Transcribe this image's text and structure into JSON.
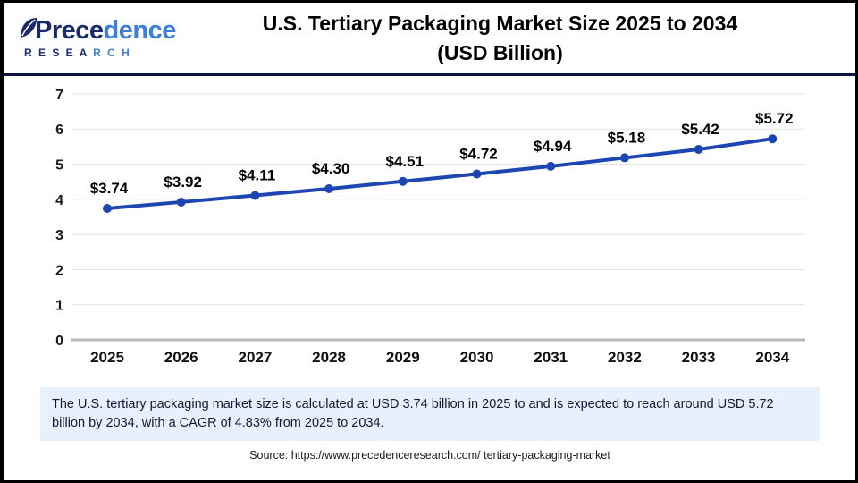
{
  "header": {
    "logo": {
      "brand_dark": "Prece",
      "brand_light": "dence",
      "sub_dark": "R E S E A ",
      "sub_light": "R C H"
    },
    "title_line1": "U.S. Tertiary Packaging Market Size 2025 to 2034",
    "title_line2": "(USD Billion)"
  },
  "chart_data": {
    "type": "line",
    "title": "U.S. Tertiary Packaging Market Size 2025 to 2034 (USD Billion)",
    "categories": [
      "2025",
      "2026",
      "2027",
      "2028",
      "2029",
      "2030",
      "2031",
      "2032",
      "2033",
      "2034"
    ],
    "values": [
      3.74,
      3.92,
      4.11,
      4.3,
      4.51,
      4.72,
      4.94,
      5.18,
      5.42,
      5.72
    ],
    "point_labels": [
      "$3.74",
      "$3.92",
      "$4.11",
      "$4.30",
      "$4.51",
      "$4.72",
      "$4.94",
      "$5.18",
      "$5.42",
      "$5.72"
    ],
    "xlabel": "",
    "ylabel": "",
    "ylim": [
      0,
      7
    ],
    "yticks": [
      0,
      1,
      2,
      3,
      4,
      5,
      6,
      7
    ],
    "grid": true,
    "legend": "none",
    "line_color": "#1e46b2",
    "marker_color": "#1e46b2",
    "grid_color": "#e4e4e4",
    "axis_color": "#b9b9b9"
  },
  "footer": {
    "description": "The U.S. tertiary packaging market size is calculated at USD 3.74 billion in 2025 to and is expected to reach around USD 5.72 billion by 2034, with a CAGR of 4.83% from 2025 to 2034.",
    "source": "Source: https://www.precedenceresearch.com/ tertiary-packaging-market"
  },
  "colors": {
    "header_divider": "#0e1440",
    "logo_navy": "#1b2a6b",
    "logo_blue": "#3d7fd6",
    "desc_box_bg": "#e8f1fb",
    "frame_border": "#000000"
  }
}
